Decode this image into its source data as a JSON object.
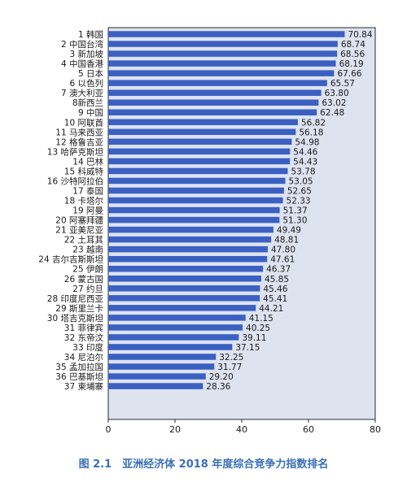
{
  "caption": "图 2.1　亚洲经济体 2018 年度综合竞争力指数排名",
  "colors": {
    "bar": "#3b60c2",
    "panel": "#dde3ef",
    "panel_border": "#2b2b2b",
    "text": "#1a1a1a"
  },
  "chart_data": {
    "type": "bar",
    "orientation": "horizontal",
    "title": "",
    "xlabel": "",
    "ylabel": "",
    "xlim": [
      0,
      80
    ],
    "x_ticks": [
      0,
      20,
      40,
      60,
      80
    ],
    "grid": false,
    "categories": [
      "1 韩国",
      "2 中国台湾",
      "3 新加坡",
      "4 中国香港",
      "5 日本",
      "6 以色列",
      "7 澳大利亚",
      "8新西兰",
      "9 中国",
      "10 阿联酋",
      "11 马来西亚",
      "12 格鲁吉亚",
      "13 哈萨克斯坦",
      "14 巴林",
      "15 科威特",
      "16 沙特阿拉伯",
      "17 泰国",
      "18 卡塔尔",
      "19 阿曼",
      "20 阿塞拜疆",
      "21 亚美尼亚",
      "22 土耳其",
      "23 越南",
      "24 吉尔吉斯斯坦",
      "25 伊朗",
      "26 蒙古国",
      "27 约旦",
      "28 印度尼西亚",
      "29 斯里兰卡",
      "30 塔吉克斯坦",
      "31 菲律宾",
      "32 东帝汶",
      "33 印度",
      "34 尼泊尔",
      "35 孟加拉国",
      "36 巴基斯坦",
      "37 柬埔寨"
    ],
    "values": [
      70.84,
      68.74,
      68.56,
      68.19,
      67.66,
      65.57,
      63.8,
      63.02,
      62.48,
      56.82,
      56.18,
      54.98,
      54.46,
      54.43,
      53.78,
      53.05,
      52.65,
      52.33,
      51.37,
      51.3,
      49.49,
      48.81,
      47.8,
      47.61,
      46.37,
      45.85,
      45.46,
      45.41,
      44.21,
      41.15,
      40.25,
      39.11,
      37.15,
      32.25,
      31.77,
      29.2,
      28.36
    ],
    "value_labels": [
      "70.84",
      "68.74",
      "68.56",
      "68.19",
      "67.66",
      "65.57",
      "63.80",
      "63.02",
      "62.48",
      "56.82",
      "56.18",
      "54.98",
      "54.46",
      "54.43",
      "53.78",
      "53.05",
      "52.65",
      "52.33",
      "51.37",
      "51.30",
      "49.49",
      "48.81",
      "47.80",
      "47.61",
      "46.37",
      "45.85",
      "45.46",
      "45.41",
      "44.21",
      "41.15",
      "40.25",
      "39.11",
      "37.15",
      "32.25",
      "31.77",
      "29.20",
      "28.36"
    ]
  }
}
